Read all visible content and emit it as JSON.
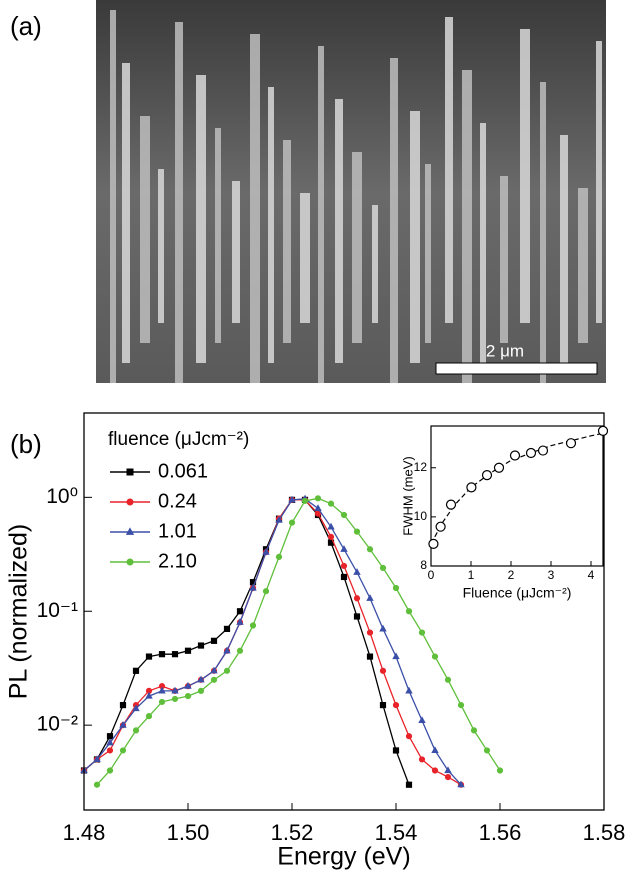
{
  "panel_a": {
    "label": "(a)",
    "scale_bar": "2 μm"
  },
  "panel_b": {
    "label": "(b)"
  },
  "chart_data": [
    {
      "type": "line",
      "y_label": "PL (normalized)",
      "x_label": "Energy (eV)",
      "log_y": true,
      "legend_title": "fluence (μJcm⁻²)",
      "legend": "upper-left",
      "xlim": [
        1.48,
        1.58
      ],
      "xticks": [
        1.48,
        {
          "value": 1.5,
          "label": "1.50"
        },
        1.52,
        1.54,
        1.56,
        1.58
      ],
      "ylim": [
        0.0018,
        5.5
      ],
      "yticks": [
        {
          "value": 0.01,
          "label": "10⁻²"
        },
        {
          "value": 0.1,
          "label": "10⁻¹"
        },
        {
          "value": 1,
          "label": "10⁰"
        }
      ],
      "x": [
        1.48,
        1.4825,
        1.485,
        1.4875,
        1.49,
        1.4925,
        1.495,
        1.4975,
        1.5,
        1.5025,
        1.505,
        1.5075,
        1.51,
        1.5125,
        1.515,
        1.5175,
        1.52,
        1.5225,
        1.525,
        1.5275,
        1.53,
        1.5325,
        1.535,
        1.5375,
        1.54,
        1.5425,
        1.545,
        1.5475,
        1.55,
        1.5525,
        1.555,
        1.5575,
        1.56
      ],
      "series": [
        {
          "name": "0.061",
          "color": "#000000",
          "marker": "square",
          "values": [
            0.004,
            0.005,
            0.008,
            0.015,
            0.03,
            0.04,
            0.042,
            0.042,
            0.045,
            0.05,
            0.055,
            0.07,
            0.1,
            0.18,
            0.35,
            0.65,
            0.95,
            0.95,
            0.7,
            0.4,
            0.2,
            0.09,
            0.04,
            0.015,
            0.006,
            0.003,
            null,
            null,
            null,
            null,
            null,
            null,
            null
          ]
        },
        {
          "name": "0.24",
          "color": "#e8242a",
          "marker": "circle",
          "values": [
            0.004,
            0.005,
            0.006,
            0.01,
            0.015,
            0.02,
            0.022,
            0.02,
            0.022,
            0.025,
            0.03,
            0.045,
            0.08,
            0.16,
            0.33,
            0.65,
            0.95,
            0.95,
            0.72,
            0.45,
            0.25,
            0.13,
            0.065,
            0.03,
            0.015,
            0.008,
            0.005,
            0.004,
            0.0035,
            0.003,
            null,
            null,
            null
          ]
        },
        {
          "name": "1.01",
          "color": "#3b4fa8",
          "marker": "triangle",
          "values": [
            0.004,
            0.005,
            0.007,
            0.01,
            0.014,
            0.018,
            0.02,
            0.02,
            0.022,
            0.025,
            0.03,
            0.045,
            0.08,
            0.16,
            0.33,
            0.63,
            0.95,
            0.97,
            0.8,
            0.55,
            0.35,
            0.22,
            0.13,
            0.07,
            0.04,
            0.02,
            0.011,
            0.006,
            0.004,
            0.003,
            null,
            null,
            null
          ]
        },
        {
          "name": "2.10",
          "color": "#5fbf3a",
          "marker": "circle",
          "values": [
            null,
            0.003,
            0.004,
            0.006,
            0.009,
            0.012,
            0.016,
            0.017,
            0.018,
            0.02,
            0.025,
            0.03,
            0.045,
            0.075,
            0.15,
            0.3,
            0.6,
            0.93,
            0.98,
            0.88,
            0.7,
            0.5,
            0.35,
            0.24,
            0.16,
            0.1,
            0.065,
            0.04,
            0.025,
            0.015,
            0.009,
            0.006,
            0.004
          ]
        }
      ]
    },
    {
      "type": "scatter",
      "y_label": "FWHM (meV)",
      "x_label": "Fluence (μJcm⁻²)",
      "xlim": [
        0,
        4.3
      ],
      "xticks": [
        0,
        1,
        2,
        3,
        4
      ],
      "ylim": [
        8,
        13.7
      ],
      "yticks": [
        8,
        10,
        12
      ],
      "x": [
        0.061,
        0.24,
        0.5,
        1.01,
        1.4,
        1.7,
        2.1,
        2.5,
        2.8,
        3.5,
        4.3
      ],
      "values": [
        8.9,
        9.6,
        10.5,
        11.2,
        11.7,
        12.0,
        12.5,
        12.6,
        12.7,
        13.0,
        13.5
      ],
      "fit": {
        "x": [
          0,
          0.3,
          0.6,
          1,
          1.5,
          2,
          2.5,
          3,
          3.5,
          4,
          4.3
        ],
        "values": [
          8.9,
          9.8,
          10.5,
          11.2,
          11.8,
          12.3,
          12.6,
          12.9,
          13.1,
          13.3,
          13.4
        ]
      }
    }
  ]
}
